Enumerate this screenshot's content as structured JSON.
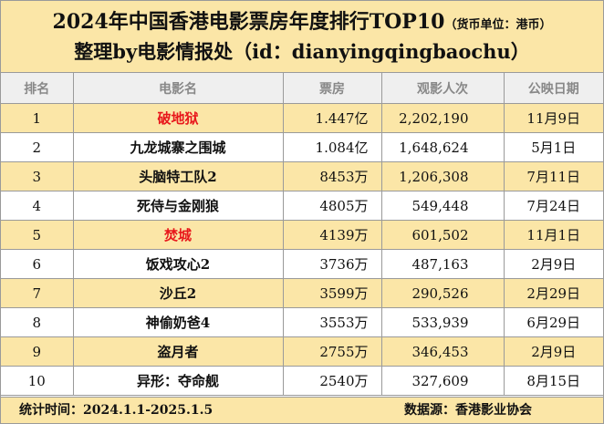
{
  "header": {
    "title": "2024年中国香港电影票房年度排行TOP10",
    "unit": "（货币单位：港币）",
    "subtitle": "整理by电影情报处（id：dianyingqingbaochu）"
  },
  "table": {
    "columns": [
      "排名",
      "电影名",
      "票房",
      "观影人次",
      "公映日期"
    ],
    "rows": [
      {
        "rank": "1",
        "title": "破地狱",
        "box_office": "1.447亿",
        "viewers": "2,202,190",
        "date": "11月9日",
        "highlight": true
      },
      {
        "rank": "2",
        "title": "九龙城寨之围城",
        "box_office": "1.084亿",
        "viewers": "1,648,624",
        "date": "5月1日",
        "highlight": false
      },
      {
        "rank": "3",
        "title": "头脑特工队2",
        "box_office": "8453万",
        "viewers": "1,206,308",
        "date": "7月11日",
        "highlight": false
      },
      {
        "rank": "4",
        "title": "死侍与金刚狼",
        "box_office": "4805万",
        "viewers": "549,448",
        "date": "7月24日",
        "highlight": false
      },
      {
        "rank": "5",
        "title": "焚城",
        "box_office": "4139万",
        "viewers": "601,502",
        "date": "11月1日",
        "highlight": true
      },
      {
        "rank": "6",
        "title": "饭戏攻心2",
        "box_office": "3736万",
        "viewers": "487,163",
        "date": "2月9日",
        "highlight": false
      },
      {
        "rank": "7",
        "title": "沙丘2",
        "box_office": "3599万",
        "viewers": "290,526",
        "date": "2月29日",
        "highlight": false
      },
      {
        "rank": "8",
        "title": "神偷奶爸4",
        "box_office": "3553万",
        "viewers": "533,939",
        "date": "6月29日",
        "highlight": false
      },
      {
        "rank": "9",
        "title": "盗月者",
        "box_office": "2755万",
        "viewers": "346,453",
        "date": "2月9日",
        "highlight": false
      },
      {
        "rank": "10",
        "title": "异形：夺命舰",
        "box_office": "2540万",
        "viewers": "327,609",
        "date": "8月15日",
        "highlight": false
      }
    ]
  },
  "footer": {
    "period": "统计时间：2024.1.1-2025.1.5",
    "source": "数据源：香港影业协会"
  },
  "colors": {
    "band": "#fbe6a7",
    "header_bg": "#efefef",
    "highlight_text": "#e8161b"
  }
}
